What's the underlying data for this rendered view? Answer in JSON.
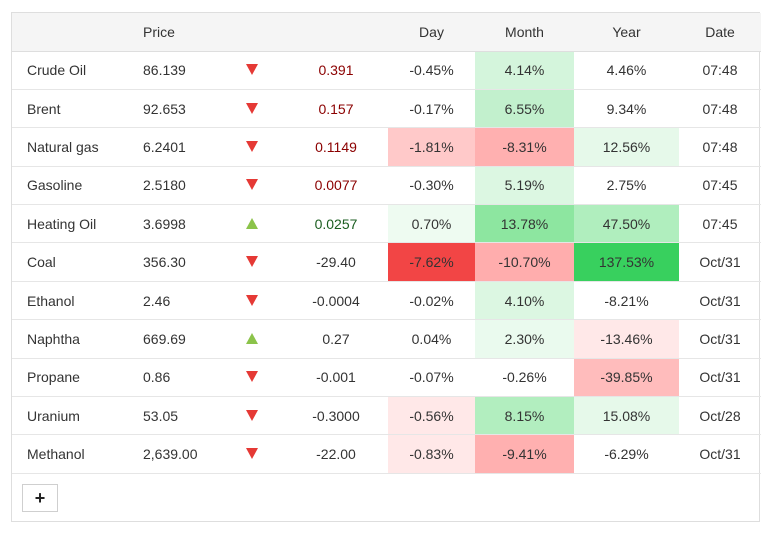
{
  "columns": {
    "name": "",
    "price": "Price",
    "arrow": "",
    "change": "",
    "day": "Day",
    "month": "Month",
    "year": "Year",
    "date": "Date"
  },
  "add_button_label": "+",
  "colors": {
    "down_arrow": "#e53935",
    "up_arrow": "#8bc34a",
    "neg_text": "#8b0000",
    "pos_text": "#1b5e20"
  },
  "rows": [
    {
      "name": "Crude Oil",
      "price": "86.139",
      "direction": "down",
      "change": "0.391",
      "change_tone": "neg",
      "day": "-0.45%",
      "day_bg": "#ffffff",
      "month": "4.14%",
      "month_bg": "#d4f5dc",
      "year": "4.46%",
      "year_bg": "#ffffff",
      "date": "07:48"
    },
    {
      "name": "Brent",
      "price": "92.653",
      "direction": "down",
      "change": "0.157",
      "change_tone": "neg",
      "day": "-0.17%",
      "day_bg": "#ffffff",
      "month": "6.55%",
      "month_bg": "#c2f0cd",
      "year": "9.34%",
      "year_bg": "#ffffff",
      "date": "07:48"
    },
    {
      "name": "Natural gas",
      "price": "6.2401",
      "direction": "down",
      "change": "0.1149",
      "change_tone": "neg",
      "day": "-1.81%",
      "day_bg": "#ffc9c9",
      "month": "-8.31%",
      "month_bg": "#ffb0b0",
      "year": "12.56%",
      "year_bg": "#e6f9ea",
      "date": "07:48"
    },
    {
      "name": "Gasoline",
      "price": "2.5180",
      "direction": "down",
      "change": "0.0077",
      "change_tone": "neg",
      "day": "-0.30%",
      "day_bg": "#ffffff",
      "month": "5.19%",
      "month_bg": "#dcf7e2",
      "year": "2.75%",
      "year_bg": "#ffffff",
      "date": "07:45"
    },
    {
      "name": "Heating Oil",
      "price": "3.6998",
      "direction": "up",
      "change": "0.0257",
      "change_tone": "pos",
      "day": "0.70%",
      "day_bg": "#eefbf1",
      "month": "13.78%",
      "month_bg": "#8de6a0",
      "year": "47.50%",
      "year_bg": "#b0eebe",
      "date": "07:45"
    },
    {
      "name": "Coal",
      "price": "356.30",
      "direction": "down",
      "change": "-29.40",
      "change_tone": "neu",
      "day": "-7.62%",
      "day_bg": "#f24545",
      "month": "-10.70%",
      "month_bg": "#ffadad",
      "year": "137.53%",
      "year_bg": "#38d05e",
      "date": "Oct/31"
    },
    {
      "name": "Ethanol",
      "price": "2.46",
      "direction": "down",
      "change": "-0.0004",
      "change_tone": "neu",
      "day": "-0.02%",
      "day_bg": "#ffffff",
      "month": "4.10%",
      "month_bg": "#dcf7e2",
      "year": "-8.21%",
      "year_bg": "#ffffff",
      "date": "Oct/31"
    },
    {
      "name": "Naphtha",
      "price": "669.69",
      "direction": "up",
      "change": "0.27",
      "change_tone": "neu",
      "day": "0.04%",
      "day_bg": "#ffffff",
      "month": "2.30%",
      "month_bg": "#eafaee",
      "year": "-13.46%",
      "year_bg": "#ffe8e8",
      "date": "Oct/31"
    },
    {
      "name": "Propane",
      "price": "0.86",
      "direction": "down",
      "change": "-0.001",
      "change_tone": "neu",
      "day": "-0.07%",
      "day_bg": "#ffffff",
      "month": "-0.26%",
      "month_bg": "#ffffff",
      "year": "-39.85%",
      "year_bg": "#ffbcbc",
      "date": "Oct/31"
    },
    {
      "name": "Uranium",
      "price": "53.05",
      "direction": "down",
      "change": "-0.3000",
      "change_tone": "neu",
      "day": "-0.56%",
      "day_bg": "#ffe8e8",
      "month": "8.15%",
      "month_bg": "#b2eebf",
      "year": "15.08%",
      "year_bg": "#e6f9ea",
      "date": "Oct/28"
    },
    {
      "name": "Methanol",
      "price": "2,639.00",
      "direction": "down",
      "change": "-22.00",
      "change_tone": "neu",
      "day": "-0.83%",
      "day_bg": "#ffe8e8",
      "month": "-9.41%",
      "month_bg": "#ffb0b0",
      "year": "-6.29%",
      "year_bg": "#ffffff",
      "date": "Oct/31"
    }
  ]
}
